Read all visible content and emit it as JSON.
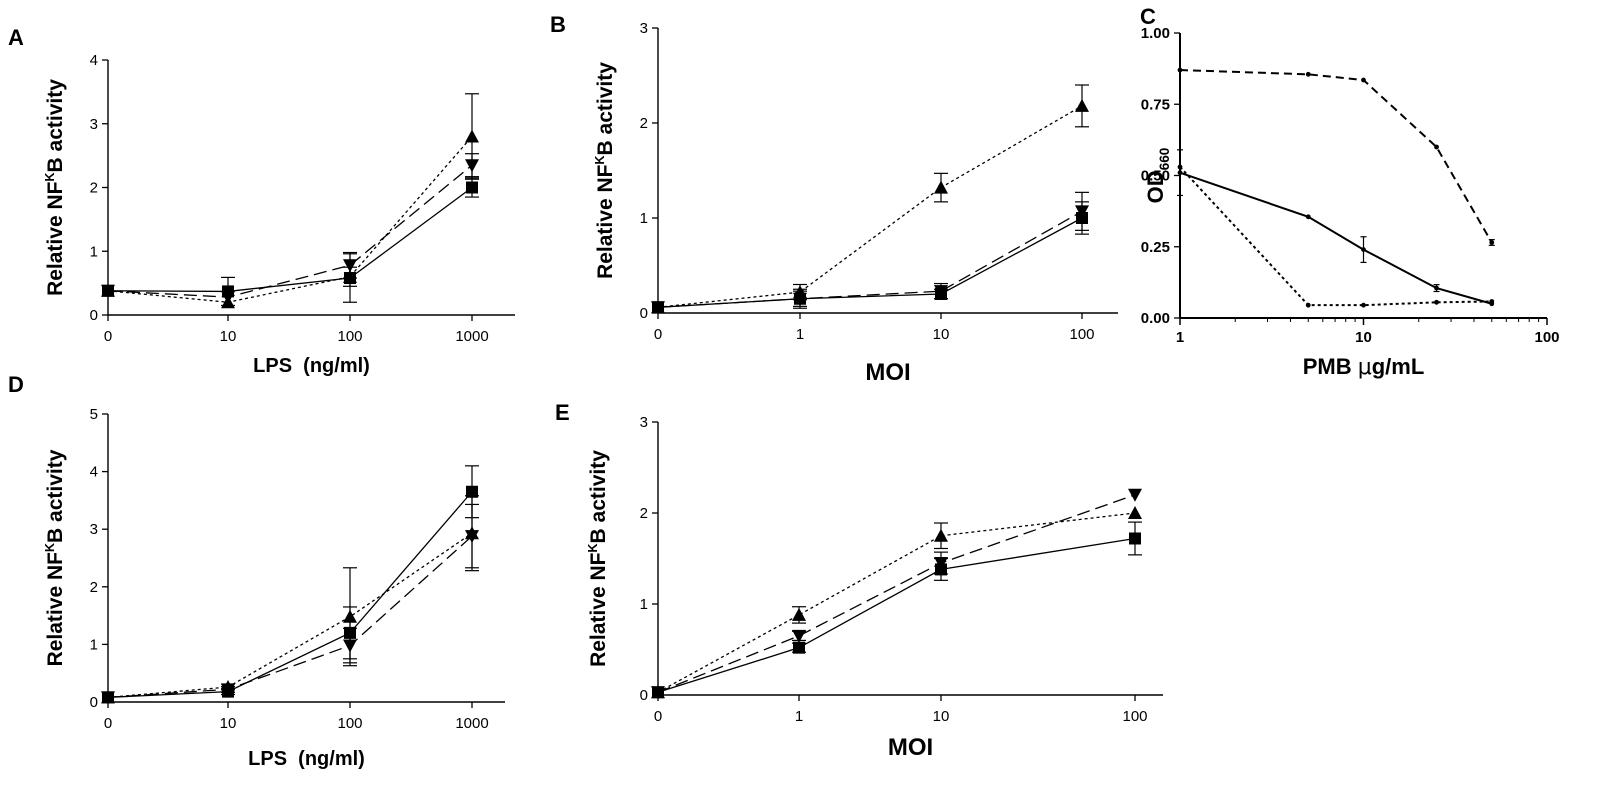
{
  "figure": {
    "width": 1613,
    "height": 800
  },
  "chart_data": [
    {
      "panel": "A",
      "type": "line",
      "x_scale": "categorical",
      "categories": [
        "0",
        "10",
        "100",
        "1000"
      ],
      "xlabel": "LPS  (ng/ml)",
      "ylabel": {
        "before": "Relative NF",
        "sup": "K",
        "after": "B activity"
      },
      "ylim": [
        0,
        4
      ],
      "yticks": [
        0,
        1,
        2,
        3,
        4
      ],
      "series": [
        {
          "marker": "square",
          "dash": "solid",
          "values": [
            0.38,
            0.37,
            0.58,
            2.0
          ],
          "errors": [
            0,
            0.22,
            0.38,
            0.15
          ]
        },
        {
          "marker": "triangle-up",
          "dash": "dotted",
          "values": [
            0.38,
            0.2,
            0.6,
            2.8
          ],
          "errors": [
            0,
            0,
            0.15,
            0.67
          ]
        },
        {
          "marker": "triangle-down",
          "dash": "dashed",
          "values": [
            0.38,
            0.28,
            0.78,
            2.35
          ],
          "errors": [
            0,
            0,
            0.2,
            0.18
          ]
        }
      ]
    },
    {
      "panel": "B",
      "type": "line",
      "x_scale": "categorical",
      "categories": [
        "0",
        "1",
        "10",
        "100"
      ],
      "xlabel": "MOI",
      "ylabel": {
        "before": "Relative NF",
        "sup": "K",
        "after": "B activity"
      },
      "ylim": [
        0,
        3
      ],
      "yticks": [
        0,
        1,
        2,
        3
      ],
      "series": [
        {
          "marker": "square",
          "dash": "solid",
          "values": [
            0.06,
            0.15,
            0.2,
            1.0
          ],
          "errors": [
            0,
            0.1,
            0.05,
            0.17
          ]
        },
        {
          "marker": "triangle-up",
          "dash": "dotted",
          "values": [
            0.06,
            0.22,
            1.32,
            2.18
          ],
          "errors": [
            0,
            0.08,
            0.15,
            0.22
          ]
        },
        {
          "marker": "triangle-down",
          "dash": "dashed",
          "values": [
            0.06,
            0.15,
            0.23,
            1.07
          ],
          "errors": [
            0,
            0.08,
            0.08,
            0.2
          ]
        }
      ]
    },
    {
      "panel": "C",
      "type": "line",
      "x_scale": "log",
      "xlim": [
        1,
        100
      ],
      "xticks": [
        1,
        10,
        100
      ],
      "xlabel": {
        "before": "PMB ",
        "greek": "μ",
        "after": "g/mL"
      },
      "ylabel": {
        "before": "OD",
        "sub": "660"
      },
      "ylim": [
        0,
        1
      ],
      "yticks": [
        0,
        0.25,
        0.5,
        0.75,
        1
      ],
      "ytick_labels": [
        "0.00",
        "0.25",
        "0.50",
        "0.75",
        "1.00"
      ],
      "series": [
        {
          "marker": "dot",
          "dash": "dashed-heavy",
          "x": [
            1,
            5,
            10,
            25,
            50
          ],
          "values": [
            0.87,
            0.855,
            0.835,
            0.6,
            0.265
          ],
          "errors": [
            0,
            0,
            0,
            0,
            0.01
          ]
        },
        {
          "marker": "dot",
          "dash": "solid",
          "x": [
            1,
            5,
            10,
            25,
            50
          ],
          "values": [
            0.51,
            0.355,
            0.24,
            0.105,
            0.05
          ],
          "errors": [
            0.08,
            0,
            0.045,
            0.012,
            0
          ]
        },
        {
          "marker": "dot",
          "dash": "dotted",
          "x": [
            1,
            5,
            10,
            25,
            50
          ],
          "values": [
            0.53,
            0.045,
            0.045,
            0.055,
            0.058
          ],
          "errors": [
            0,
            0,
            0,
            0,
            0
          ]
        }
      ]
    },
    {
      "panel": "D",
      "type": "line",
      "x_scale": "categorical",
      "categories": [
        "0",
        "10",
        "100",
        "1000"
      ],
      "xlabel": "LPS  (ng/ml)",
      "ylabel": {
        "before": "Relative NF",
        "sup": "K",
        "after": "B activity"
      },
      "ylim": [
        0,
        5
      ],
      "yticks": [
        0,
        1,
        2,
        3,
        4,
        5
      ],
      "series": [
        {
          "marker": "square",
          "dash": "solid",
          "values": [
            0.08,
            0.18,
            1.2,
            3.65
          ],
          "errors": [
            0,
            0.05,
            0.45,
            0.45
          ]
        },
        {
          "marker": "triangle-up",
          "dash": "dotted",
          "values": [
            0.08,
            0.26,
            1.48,
            2.93
          ],
          "errors": [
            0,
            0.05,
            0.85,
            0.65
          ]
        },
        {
          "marker": "triangle-down",
          "dash": "dashed",
          "values": [
            0.08,
            0.22,
            0.98,
            2.88
          ],
          "errors": [
            0,
            0.05,
            0.3,
            0.55
          ]
        }
      ]
    },
    {
      "panel": "E",
      "type": "line",
      "x_scale": "categorical",
      "categories": [
        "0",
        "1",
        "10",
        "100"
      ],
      "xlabel": "MOI",
      "ylabel": {
        "before": "Relative NF",
        "sup": "K",
        "after": "B activity"
      },
      "ylim": [
        0,
        3
      ],
      "yticks": [
        0,
        1,
        2,
        3
      ],
      "series": [
        {
          "marker": "square",
          "dash": "solid",
          "values": [
            0.03,
            0.52,
            1.38,
            1.72
          ],
          "errors": [
            0,
            0.05,
            0.12,
            0.18
          ]
        },
        {
          "marker": "triangle-up",
          "dash": "dotted",
          "values": [
            0.03,
            0.88,
            1.75,
            2.0
          ],
          "errors": [
            0,
            0.09,
            0.14,
            0
          ]
        },
        {
          "marker": "triangle-down",
          "dash": "dashed",
          "values": [
            0.03,
            0.65,
            1.45,
            2.2
          ],
          "errors": [
            0,
            0.05,
            0.12,
            0
          ]
        }
      ]
    }
  ]
}
